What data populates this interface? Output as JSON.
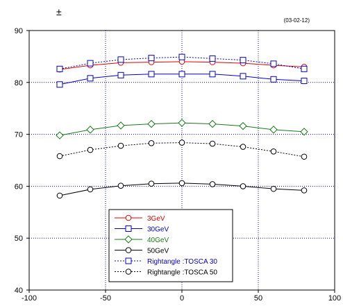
{
  "header": {
    "symbol": "±",
    "date": "(03-02-12)"
  },
  "chart_data": {
    "type": "line",
    "xlim": [
      -100,
      100
    ],
    "ylim": [
      40,
      90
    ],
    "x_ticks": [
      -100,
      -50,
      0,
      50,
      100
    ],
    "x_tick_labels": [
      "-100",
      "-50",
      "0",
      "50",
      "100"
    ],
    "y_ticks": [
      40,
      50,
      60,
      70,
      80,
      90
    ],
    "y_tick_labels": [
      "40",
      "50",
      "60",
      "70",
      "80",
      "90"
    ],
    "grid": true,
    "legend_position": "bottom-center",
    "series": [
      {
        "name": "3GeV",
        "color": "#e00000",
        "marker": "circle",
        "dash": "solid",
        "points": [
          [
            -80,
            82.5
          ],
          [
            -60,
            83.3
          ],
          [
            -40,
            83.8
          ],
          [
            -20,
            83.9
          ],
          [
            0,
            84.0
          ],
          [
            20,
            83.9
          ],
          [
            40,
            83.7
          ],
          [
            60,
            83.3
          ],
          [
            80,
            83.0
          ]
        ]
      },
      {
        "name": "30GeV",
        "color": "#0000cc",
        "marker": "square",
        "dash": "solid",
        "points": [
          [
            -80,
            79.6
          ],
          [
            -60,
            80.8
          ],
          [
            -40,
            81.4
          ],
          [
            -20,
            81.6
          ],
          [
            0,
            81.6
          ],
          [
            20,
            81.6
          ],
          [
            40,
            81.2
          ],
          [
            60,
            80.6
          ],
          [
            80,
            80.3
          ]
        ]
      },
      {
        "name": "40GeV",
        "color": "#1a7a1a",
        "marker": "diamond",
        "dash": "solid",
        "points": [
          [
            -80,
            69.8
          ],
          [
            -60,
            70.9
          ],
          [
            -40,
            71.7
          ],
          [
            -20,
            72.0
          ],
          [
            0,
            72.2
          ],
          [
            20,
            72.0
          ],
          [
            40,
            71.6
          ],
          [
            60,
            70.9
          ],
          [
            80,
            70.5
          ]
        ]
      },
      {
        "name": "50GeV",
        "color": "#000000",
        "marker": "circle",
        "dash": "solid",
        "points": [
          [
            -80,
            58.2
          ],
          [
            -60,
            59.4
          ],
          [
            -40,
            60.1
          ],
          [
            -20,
            60.5
          ],
          [
            0,
            60.6
          ],
          [
            20,
            60.4
          ],
          [
            40,
            60.0
          ],
          [
            60,
            59.5
          ],
          [
            80,
            59.2
          ]
        ]
      },
      {
        "name": "Rightangle  :TOSCA 30",
        "color": "#0000cc",
        "marker": "square",
        "dash": "dotted",
        "points": [
          [
            -80,
            82.6
          ],
          [
            -60,
            83.7
          ],
          [
            -40,
            84.4
          ],
          [
            -20,
            84.7
          ],
          [
            0,
            84.9
          ],
          [
            20,
            84.6
          ],
          [
            40,
            84.3
          ],
          [
            60,
            83.6
          ],
          [
            80,
            82.6
          ]
        ]
      },
      {
        "name": "Rightangle  :TOSCA 50",
        "color": "#000000",
        "marker": "circle",
        "dash": "dotted",
        "points": [
          [
            -80,
            65.8
          ],
          [
            -60,
            67.0
          ],
          [
            -40,
            67.8
          ],
          [
            -20,
            68.3
          ],
          [
            0,
            68.4
          ],
          [
            20,
            68.2
          ],
          [
            40,
            67.6
          ],
          [
            60,
            66.7
          ],
          [
            80,
            65.7
          ]
        ]
      }
    ]
  }
}
